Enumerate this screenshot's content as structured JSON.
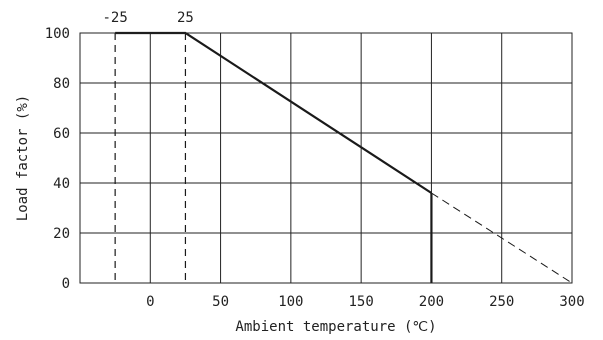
{
  "chart_data": {
    "type": "line",
    "title": "",
    "xlabel": "Ambient temperature (℃)",
    "ylabel": "Load factor (%)",
    "xlim": [
      -50,
      300
    ],
    "ylim": [
      0,
      100
    ],
    "x_ticks": [
      0,
      50,
      100,
      150,
      200,
      250,
      300
    ],
    "x_tick_labels": [
      "0",
      "50",
      "100",
      "150",
      "200",
      "250",
      "300"
    ],
    "y_ticks": [
      0,
      20,
      40,
      60,
      80,
      100
    ],
    "y_tick_labels": [
      "0",
      "20",
      "40",
      "60",
      "80",
      "100"
    ],
    "grid": true,
    "legend": "none",
    "series": [
      {
        "style": "solid",
        "x": [
          -25,
          25,
          200
        ],
        "y": [
          100,
          100,
          36
        ]
      },
      {
        "style": "dashed",
        "x": [
          200,
          300
        ],
        "y": [
          36,
          0
        ]
      },
      {
        "style": "solid",
        "x": [
          200,
          200
        ],
        "y": [
          36,
          0
        ]
      }
    ],
    "reference_lines": [
      {
        "x": -25,
        "label": "-25",
        "style": "dashed"
      },
      {
        "x": 25,
        "label": "25",
        "style": "dashed"
      }
    ],
    "line_color": "#1a1a1a",
    "grid_color": "#222222"
  }
}
